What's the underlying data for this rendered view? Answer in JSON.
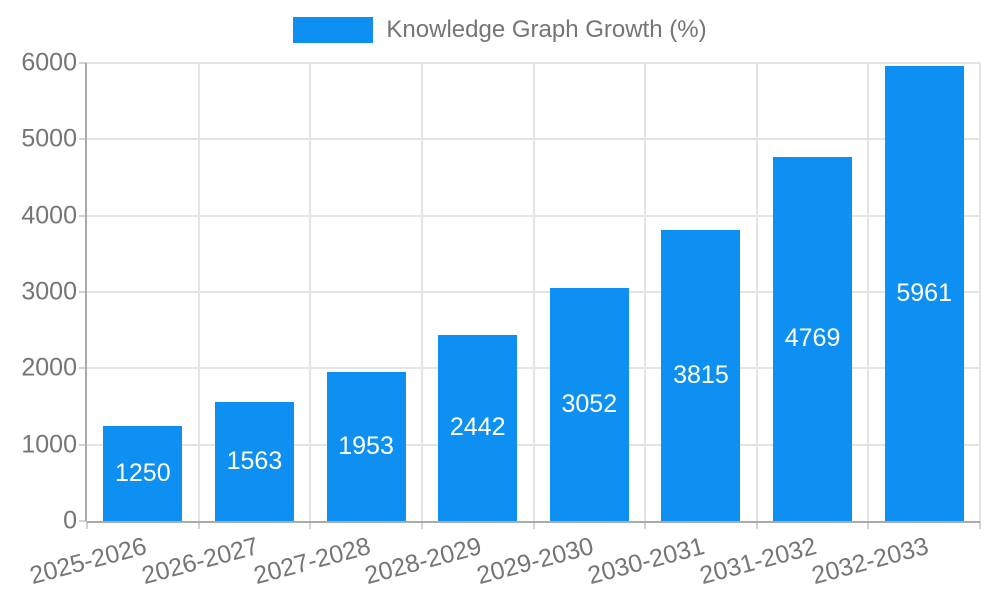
{
  "legend": {
    "label": "Knowledge Graph Growth (%)"
  },
  "chart_data": {
    "type": "bar",
    "title": "Knowledge Graph Growth (%)",
    "categories": [
      "2025-2026",
      "2026-2027",
      "2027-2028",
      "2028-2029",
      "2029-2030",
      "2030-2031",
      "2031-2032",
      "2032-2033"
    ],
    "values": [
      1250,
      1563,
      1953,
      2442,
      3052,
      3815,
      4769,
      5961
    ],
    "xlabel": "",
    "ylabel": "",
    "ylim": [
      0,
      6000
    ],
    "yticks": [
      0,
      1000,
      2000,
      3000,
      4000,
      5000,
      6000
    ],
    "grid": true,
    "legend_position": "top",
    "x_label_rotation_deg": -15,
    "colors": {
      "bar": "#0d90f1",
      "value_label": "#ffffff",
      "axis_text": "#757575",
      "grid_line": "#e4e4e4",
      "tick_mark": "#d2d2d2",
      "axis_line": "#ababab",
      "background": "#ffffff"
    }
  }
}
